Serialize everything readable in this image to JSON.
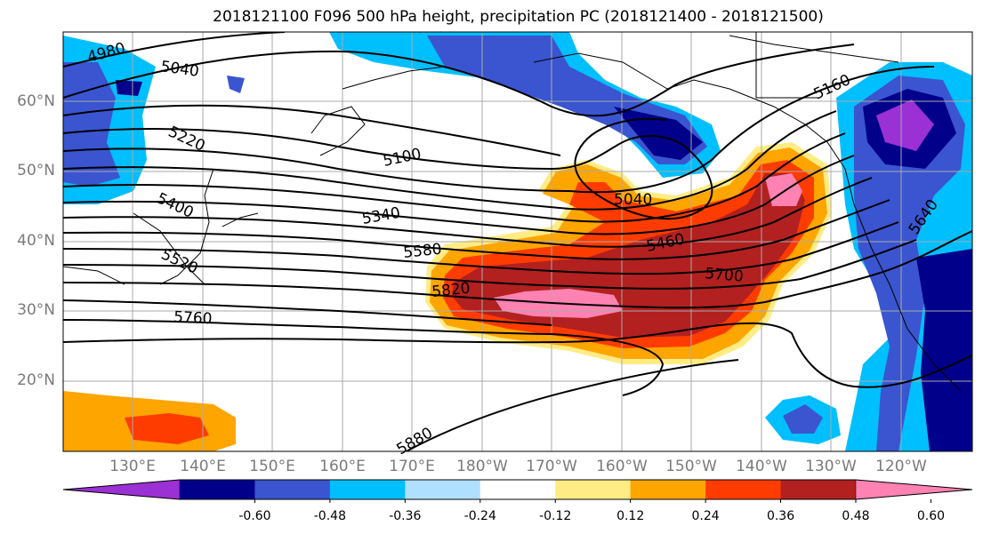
{
  "title": "2018121100 F096 500 hPa height, precipitation PC (2018121400 - 2018121500)",
  "lat_labels": [
    "60°N",
    "50°N",
    "40°N",
    "30°N",
    "20°N"
  ],
  "lon_labels": [
    "130°E",
    "140°E",
    "150°E",
    "160°E",
    "170°E",
    "180°W",
    "170°W",
    "160°W",
    "150°W",
    "140°W",
    "130°W",
    "120°W"
  ],
  "contour_labels": [
    "4980",
    "5040",
    "5100",
    "5040",
    "5160",
    "5220",
    "5400",
    "5340",
    "5580",
    "5460",
    "5700",
    "5520",
    "5820",
    "5760",
    "5880",
    "5640"
  ],
  "colorbar": {
    "colors": [
      "#9b30d4",
      "#00008b",
      "#3a55cf",
      "#00bfff",
      "#b0e0ff",
      "#ffffff",
      "#ffec85",
      "#ffa500",
      "#ff3c00",
      "#b22020",
      "#ff82b2"
    ],
    "ticks": [
      "-0.60",
      "-0.48",
      "-0.36",
      "-0.24",
      "-0.12",
      "0.12",
      "0.24",
      "0.36",
      "0.48",
      "0.60"
    ]
  }
}
